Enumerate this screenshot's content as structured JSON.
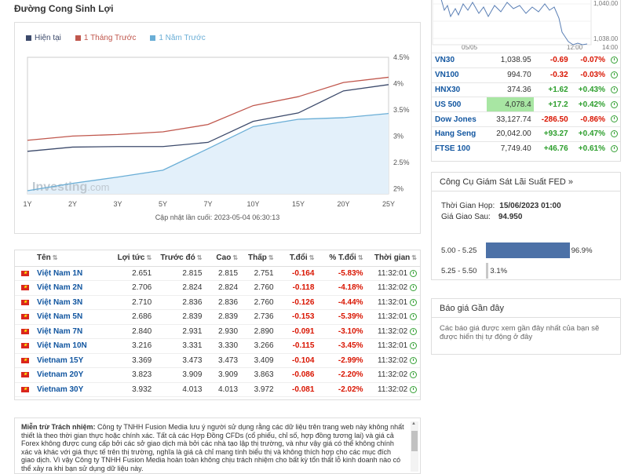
{
  "page_title": "Đường Cong Sinh Lợi",
  "chart_data": {
    "type": "line",
    "categories": [
      "1Y",
      "2Y",
      "3Y",
      "5Y",
      "7Y",
      "10Y",
      "15Y",
      "20Y",
      "25Y"
    ],
    "series": [
      {
        "name": "Hiện tại",
        "color": "#3c4a6b",
        "values": [
          2.71,
          2.79,
          2.8,
          2.8,
          2.88,
          3.28,
          3.44,
          3.86,
          3.98
        ]
      },
      {
        "name": "1 Tháng Trước",
        "color": "#c0574d",
        "values": [
          2.92,
          3.0,
          3.03,
          3.08,
          3.22,
          3.58,
          3.75,
          4.02,
          4.12
        ]
      },
      {
        "name": "1 Năm Trước",
        "color": "#6aaed6",
        "values": [
          1.96,
          2.1,
          2.22,
          2.35,
          2.76,
          3.18,
          3.32,
          3.35,
          3.43
        ]
      }
    ],
    "yticks": [
      "4.5%",
      "4%",
      "3.5%",
      "3%",
      "2.5%",
      "2%"
    ],
    "ylim": [
      1.9,
      4.5
    ],
    "watermark": "Investing",
    "watermark_suffix": ".com",
    "updated": "Cập nhật lần cuối: 2023-05-04 06:30:13"
  },
  "bond_table": {
    "headers": [
      "Tên",
      "Lợi tức",
      "Trước đó",
      "Cao",
      "Thấp",
      "T.đổi",
      "% T.đổi",
      "Thời gian"
    ],
    "rows": [
      {
        "name": "Việt Nam 1N",
        "yield": "2.651",
        "prev": "2.815",
        "high": "2.815",
        "low": "2.751",
        "chg": "-0.164",
        "chg_pct": "-5.83%",
        "time": "11:32:01"
      },
      {
        "name": "Việt Nam 2N",
        "yield": "2.706",
        "prev": "2.824",
        "high": "2.824",
        "low": "2.760",
        "chg": "-0.118",
        "chg_pct": "-4.18%",
        "time": "11:32:02"
      },
      {
        "name": "Việt Nam 3N",
        "yield": "2.710",
        "prev": "2.836",
        "high": "2.836",
        "low": "2.760",
        "chg": "-0.126",
        "chg_pct": "-4.44%",
        "time": "11:32:01"
      },
      {
        "name": "Việt Nam 5N",
        "yield": "2.686",
        "prev": "2.839",
        "high": "2.839",
        "low": "2.736",
        "chg": "-0.153",
        "chg_pct": "-5.39%",
        "time": "11:32:01"
      },
      {
        "name": "Việt Nam 7N",
        "yield": "2.840",
        "prev": "2.931",
        "high": "2.930",
        "low": "2.890",
        "chg": "-0.091",
        "chg_pct": "-3.10%",
        "time": "11:32:02"
      },
      {
        "name": "Việt Nam 10N",
        "yield": "3.216",
        "prev": "3.331",
        "high": "3.330",
        "low": "3.266",
        "chg": "-0.115",
        "chg_pct": "-3.45%",
        "time": "11:32:01"
      },
      {
        "name": "Vietnam 15Y",
        "yield": "3.369",
        "prev": "3.473",
        "high": "3.473",
        "low": "3.409",
        "chg": "-0.104",
        "chg_pct": "-2.99%",
        "time": "11:32:02"
      },
      {
        "name": "Vietnam 20Y",
        "yield": "3.823",
        "prev": "3.909",
        "high": "3.909",
        "low": "3.863",
        "chg": "-0.086",
        "chg_pct": "-2.20%",
        "time": "11:32:02"
      },
      {
        "name": "Vietnam 30Y",
        "yield": "3.932",
        "prev": "4.013",
        "high": "4.013",
        "low": "3.972",
        "chg": "-0.081",
        "chg_pct": "-2.02%",
        "time": "11:32:02"
      }
    ]
  },
  "disclaimer": {
    "title": "Miễn trừ Trách nhiệm:",
    "text": "Công ty TNHH Fusion Media lưu ý người sử dụng rằng các dữ liệu trên trang web này không nhất thiết là theo thời gian thực hoặc chính xác. Tất cả các Hợp Đồng CFDs (cổ phiếu, chỉ số, hợp đồng tương lai) và giá cả Forex không được cung cấp bởi các sở giao dịch mà bởi các nhà tạo lập thị trường, và như vậy giá có thể không chính xác và khác với giá thực tế trên thị trường, nghĩa là giá cả chỉ mang tính biểu thị và không thích hợp cho các mục đích giao dịch. Vì vậy Công ty TNHH Fusion Media hoàn toàn không chịu trách nhiệm cho bất kỳ tổn thất lỗ kinh doanh nào có thể xảy ra khi bạn sử dụng dữ liệu này."
  },
  "mini_chart": {
    "yticks": [
      "1,040.00",
      "1,038.00"
    ],
    "xticks": [
      "05/05",
      "12:00",
      "14:00"
    ]
  },
  "indices": [
    {
      "name": "VN30",
      "last": "1,038.95",
      "chg": "-0.69",
      "chg_pct": "-0.07%",
      "dir": "neg"
    },
    {
      "name": "VN100",
      "last": "994.70",
      "chg": "-0.32",
      "chg_pct": "-0.03%",
      "dir": "neg"
    },
    {
      "name": "HNX30",
      "last": "374.36",
      "chg": "+1.62",
      "chg_pct": "+0.43%",
      "dir": "pos"
    },
    {
      "name": "US 500",
      "last": "4,078.4",
      "chg": "+17.2",
      "chg_pct": "+0.42%",
      "dir": "pos",
      "highlight": true
    },
    {
      "name": "Dow Jones",
      "last": "33,127.74",
      "chg": "-286.50",
      "chg_pct": "-0.86%",
      "dir": "neg"
    },
    {
      "name": "Hang Seng",
      "last": "20,042.00",
      "chg": "+93.27",
      "chg_pct": "+0.47%",
      "dir": "pos"
    },
    {
      "name": "FTSE 100",
      "last": "7,749.40",
      "chg": "+46.76",
      "chg_pct": "+0.61%",
      "dir": "pos"
    }
  ],
  "fed_monitor": {
    "title": "Công Cụ Giám Sát Lãi Suất FED »",
    "meeting_label": "Thời Gian Họp:",
    "meeting_value": "15/06/2023 01:00",
    "futures_label": "Giá Giao Sau:",
    "futures_value": "94.950",
    "bars": [
      {
        "range": "5.00 - 5.25",
        "pct": "96.9%",
        "value": 96.9
      },
      {
        "range": "5.25 - 5.50",
        "pct": "3.1%",
        "value": 3.1
      }
    ]
  },
  "recent_quotes": {
    "title": "Báo giá Gần đây",
    "text": "Các báo giá được xem gần đây nhất của bạn sẽ được hiển thị tự động ở đây"
  }
}
